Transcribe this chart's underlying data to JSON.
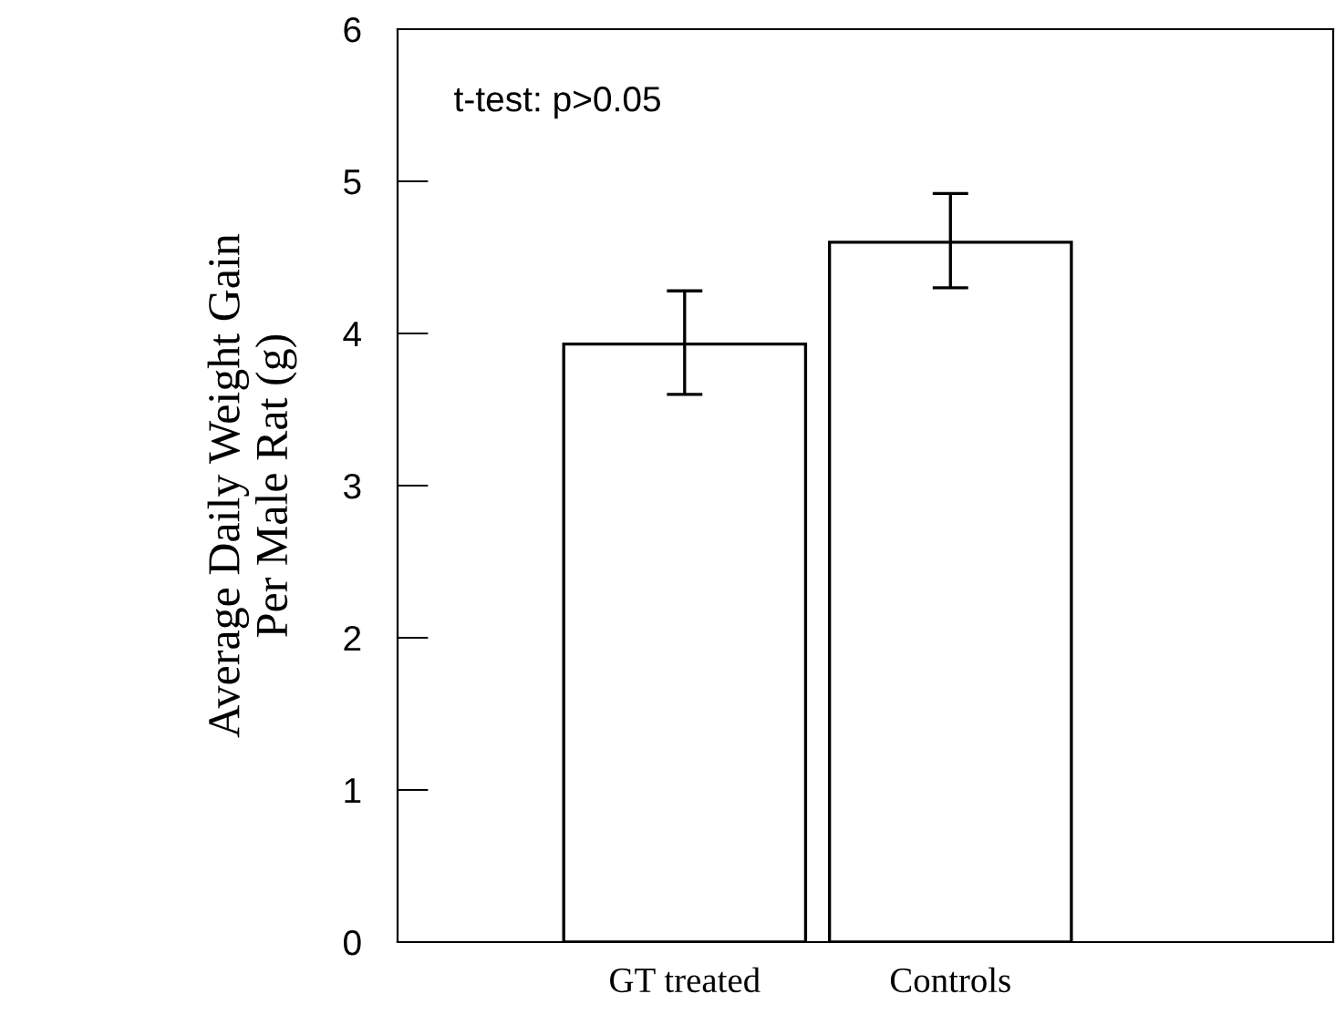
{
  "chart_data": {
    "type": "bar",
    "ylabel": "Average Daily Weight Gain\nPer Male Rat (g)",
    "categories": [
      "GT treated",
      "Controls"
    ],
    "values": [
      3.93,
      4.6
    ],
    "errors": [
      [
        3.6,
        4.28
      ],
      [
        4.3,
        4.92
      ]
    ],
    "color": "#ffffff",
    "ylim": [
      0,
      6
    ],
    "yticks": [
      0,
      1,
      2,
      3,
      4,
      5,
      6
    ],
    "grid": false,
    "annotations": [
      "t-test: p>0.05"
    ]
  }
}
